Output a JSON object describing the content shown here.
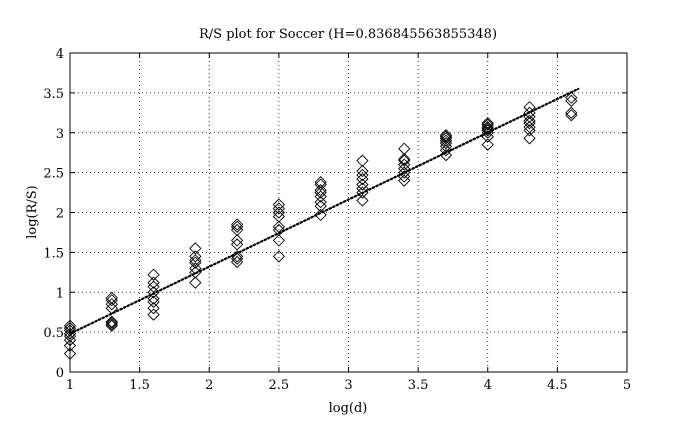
{
  "chart_data": {
    "type": "scatter",
    "title": "R/S plot for Soccer (H=0.836845563855348)",
    "xlabel": "log(d)",
    "ylabel": "log(R/S)",
    "xlim": [
      1,
      5
    ],
    "ylim": [
      0,
      4
    ],
    "xticks": [
      "1",
      "1.5",
      "2",
      "2.5",
      "3",
      "3.5",
      "4",
      "4.5",
      "5"
    ],
    "yticks": [
      "0",
      "0.5",
      "1",
      "1.5",
      "2",
      "2.5",
      "3",
      "3.5",
      "4"
    ],
    "grid": true,
    "marker": "diamond",
    "colors": {
      "marker": "#000000",
      "fit": "#000000",
      "grid": "#000000"
    },
    "series": [
      {
        "x": [
          1.0,
          1.0,
          1.0,
          1.0,
          1.0,
          1.0,
          1.0,
          1.0
        ],
        "y": [
          0.23,
          0.33,
          0.4,
          0.45,
          0.48,
          0.52,
          0.55,
          0.58
        ]
      },
      {
        "x": [
          1.3,
          1.3,
          1.3,
          1.3,
          1.3,
          1.3,
          1.3,
          1.3
        ],
        "y": [
          0.58,
          0.6,
          0.62,
          0.63,
          0.8,
          0.85,
          0.9,
          0.93
        ]
      },
      {
        "x": [
          1.6,
          1.6,
          1.6,
          1.6,
          1.6,
          1.6,
          1.6,
          1.6
        ],
        "y": [
          0.72,
          0.8,
          0.88,
          0.92,
          1.0,
          1.07,
          1.12,
          1.22
        ]
      },
      {
        "x": [
          1.9,
          1.9,
          1.9,
          1.9,
          1.9,
          1.9,
          1.9
        ],
        "y": [
          1.12,
          1.25,
          1.3,
          1.37,
          1.4,
          1.45,
          1.55
        ]
      },
      {
        "x": [
          2.2,
          2.2,
          2.2,
          2.2,
          2.2,
          2.2,
          2.2,
          2.2
        ],
        "y": [
          1.38,
          1.42,
          1.45,
          1.6,
          1.65,
          1.78,
          1.82,
          1.85
        ]
      },
      {
        "x": [
          2.5,
          2.5,
          2.5,
          2.5,
          2.5,
          2.5,
          2.5,
          2.5
        ],
        "y": [
          1.45,
          1.65,
          1.78,
          1.82,
          1.95,
          2.0,
          2.05,
          2.1
        ]
      },
      {
        "x": [
          2.8,
          2.8,
          2.8,
          2.8,
          2.8,
          2.8,
          2.8,
          2.8
        ],
        "y": [
          1.97,
          2.08,
          2.13,
          2.2,
          2.25,
          2.28,
          2.35,
          2.38
        ]
      },
      {
        "x": [
          3.1,
          3.1,
          3.1,
          3.1,
          3.1,
          3.1,
          3.1,
          3.1
        ],
        "y": [
          2.15,
          2.25,
          2.3,
          2.35,
          2.42,
          2.47,
          2.52,
          2.65
        ]
      },
      {
        "x": [
          3.4,
          3.4,
          3.4,
          3.4,
          3.4,
          3.4,
          3.4,
          3.4
        ],
        "y": [
          2.4,
          2.45,
          2.5,
          2.55,
          2.6,
          2.65,
          2.67,
          2.8
        ]
      },
      {
        "x": [
          3.7,
          3.7,
          3.7,
          3.7,
          3.7,
          3.7,
          3.7,
          3.7
        ],
        "y": [
          2.72,
          2.78,
          2.83,
          2.87,
          2.9,
          2.93,
          2.95,
          2.97
        ]
      },
      {
        "x": [
          4.0,
          4.0,
          4.0,
          4.0,
          4.0,
          4.0,
          4.0,
          4.0
        ],
        "y": [
          2.85,
          2.95,
          3.0,
          3.03,
          3.05,
          3.07,
          3.1,
          3.12
        ]
      },
      {
        "x": [
          4.3,
          4.3,
          4.3,
          4.3,
          4.3,
          4.3,
          4.3,
          4.3
        ],
        "y": [
          2.93,
          3.03,
          3.07,
          3.12,
          3.15,
          3.2,
          3.25,
          3.32
        ]
      },
      {
        "x": [
          4.6,
          4.6,
          4.6,
          4.6
        ],
        "y": [
          3.22,
          3.25,
          3.4,
          3.44
        ]
      }
    ],
    "fit_line": {
      "x": [
        1.0,
        4.65
      ],
      "y": [
        0.48,
        3.55
      ],
      "style": "dotted"
    }
  }
}
